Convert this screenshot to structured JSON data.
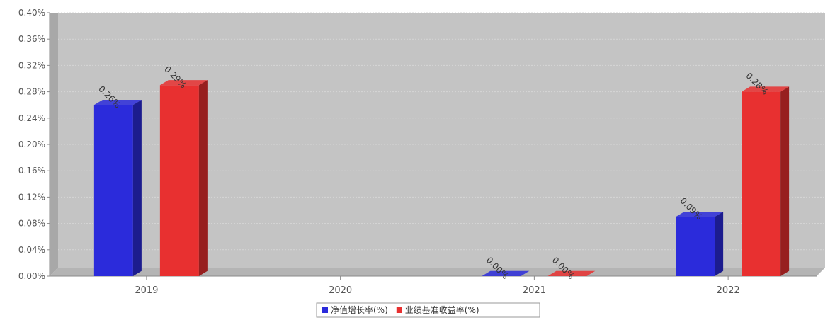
{
  "chart_data": {
    "type": "bar",
    "categories": [
      "2019",
      "2020",
      "2021",
      "2022"
    ],
    "series": [
      {
        "name": "净值增长率(%)",
        "color": "#2b2bdb",
        "values": [
          0.26,
          null,
          0.0,
          0.09
        ],
        "labels": [
          "0.26%",
          "",
          "0.00%",
          "0.09%"
        ]
      },
      {
        "name": "业绩基准收益率(%)",
        "color": "#e83030",
        "values": [
          0.29,
          null,
          0.0,
          0.28
        ],
        "labels": [
          "0.29%",
          "",
          "0.00%",
          "0.28%"
        ]
      }
    ],
    "y_ticks": [
      "0.00%",
      "0.04%",
      "0.08%",
      "0.12%",
      "0.16%",
      "0.20%",
      "0.24%",
      "0.28%",
      "0.32%",
      "0.36%",
      "0.40%"
    ],
    "ylim": [
      0,
      0.4
    ],
    "grid": true,
    "legend_position": "bottom-center",
    "plot_background": "#c4c4c4"
  }
}
